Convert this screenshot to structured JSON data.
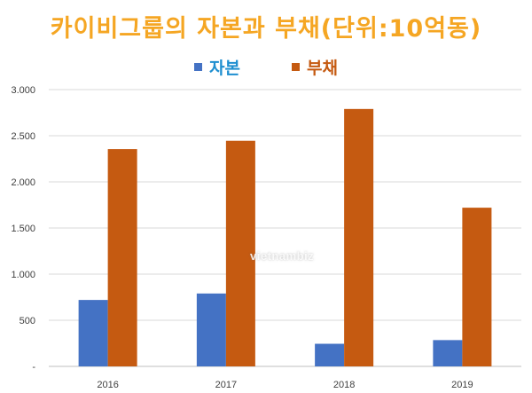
{
  "chart_data": {
    "type": "bar",
    "title": "카이비그룹의 자본과 부채(단위:10억동)",
    "categories": [
      "2016",
      "2017",
      "2018",
      "2019"
    ],
    "series": [
      {
        "name": "자본",
        "color": "#4472c4",
        "values": [
          720,
          790,
          245,
          285
        ]
      },
      {
        "name": "부채",
        "color": "#c55a11",
        "values": [
          2355,
          2445,
          2790,
          1720
        ]
      }
    ],
    "ylim": [
      0,
      3000
    ],
    "yticks": [
      0,
      500,
      1000,
      1500,
      2000,
      2500,
      3000
    ],
    "ytick_labels": [
      "-",
      "500",
      "1.000",
      "1.500",
      "2.000",
      "2.500",
      "3.000"
    ],
    "xlabel": "",
    "ylabel": "",
    "grid": true,
    "legend_position": "top"
  },
  "colors": {
    "title": "#f5a623",
    "legend_capital_text": "#1f8fd0",
    "legend_debt_text": "#c55a11"
  },
  "watermark": "vietnambiz"
}
